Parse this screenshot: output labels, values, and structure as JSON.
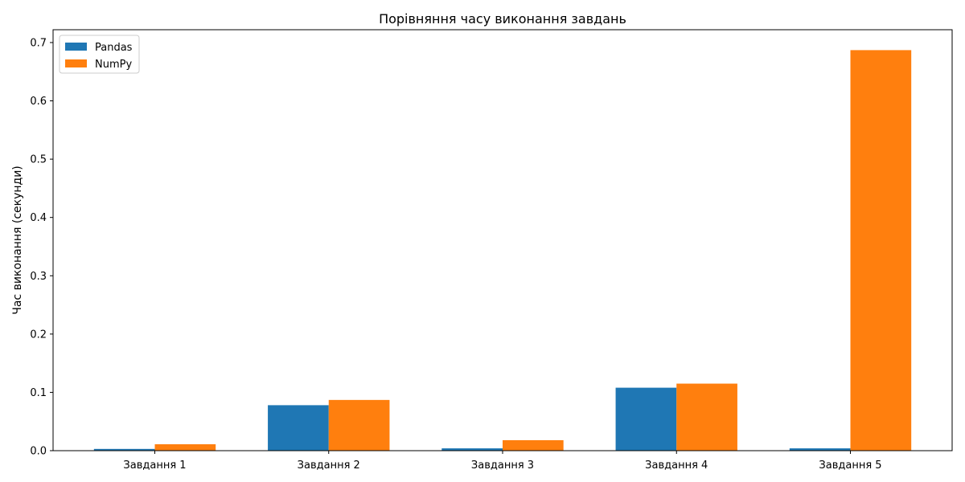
{
  "chart_data": {
    "type": "bar",
    "title": "Порівняння часу виконання завдань",
    "xlabel": "",
    "ylabel": "Час виконання (секунди)",
    "categories": [
      "Завдання 1",
      "Завдання 2",
      "Завдання 3",
      "Завдання 4",
      "Завдання 5"
    ],
    "series": [
      {
        "name": "Pandas",
        "color": "#1f77b4",
        "values": [
          0.003,
          0.078,
          0.004,
          0.108,
          0.004
        ]
      },
      {
        "name": "NumPy",
        "color": "#ff7f0e",
        "values": [
          0.011,
          0.087,
          0.018,
          0.115,
          0.687
        ]
      }
    ],
    "ylim": [
      0,
      0.722
    ],
    "yticks": [
      0.0,
      0.1,
      0.2,
      0.3,
      0.4,
      0.5,
      0.6,
      0.7
    ],
    "ytick_labels": [
      "0.0",
      "0.1",
      "0.2",
      "0.3",
      "0.4",
      "0.5",
      "0.6",
      "0.7"
    ],
    "grid": false,
    "legend_position": "top-left"
  }
}
